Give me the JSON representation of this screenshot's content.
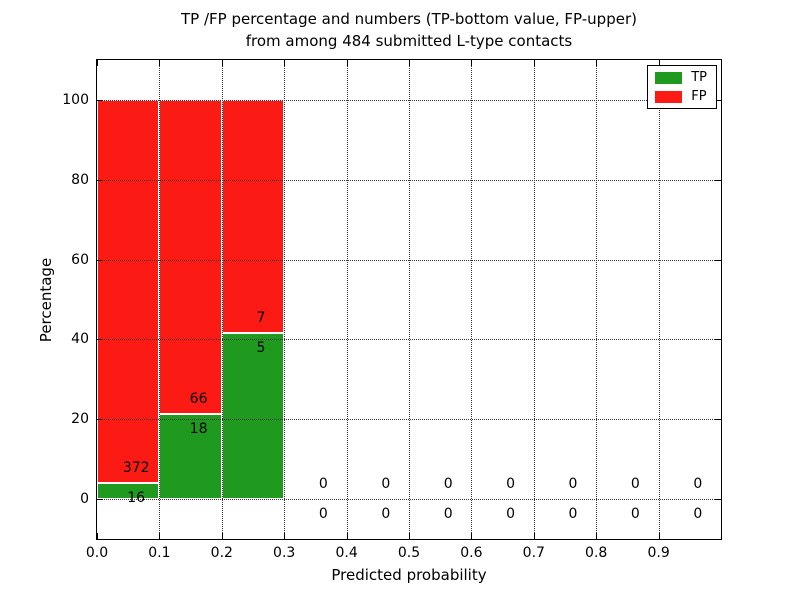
{
  "chart_data": {
    "type": "bar",
    "stacked": true,
    "title": "TP /FP percentage and numbers (TP-bottom value, FP-upper) from among 484 submitted L-type contacts",
    "title_line1": "TP /FP percentage and numbers (TP-bottom value, FP-upper)",
    "title_line2": "from among 484 submitted L-type contacts",
    "xlabel": "Predicted probability",
    "ylabel": "Percentage",
    "xlim": [
      0.0,
      1.0
    ],
    "ylim": [
      -10,
      110
    ],
    "yticks": [
      0,
      20,
      40,
      60,
      80,
      100
    ],
    "xticks": [
      0.0,
      0.1,
      0.2,
      0.3,
      0.4,
      0.5,
      0.6,
      0.7,
      0.8,
      0.9
    ],
    "xtick_labels": [
      "0.0",
      "0.1",
      "0.2",
      "0.3",
      "0.4",
      "0.5",
      "0.6",
      "0.7",
      "0.8",
      "0.9"
    ],
    "grid": true,
    "grid_linestyle": "dotted",
    "legend_position": "upper right",
    "total_contacts": 484,
    "legend": [
      {
        "label": "TP",
        "color": "#1f9a1f"
      },
      {
        "label": "FP",
        "color": "#fc1a15"
      }
    ],
    "colors": {
      "tp": "#1f9a1f",
      "fp": "#fc1a15",
      "axis": "#000000",
      "grid": "#333333",
      "background": "#ffffff"
    },
    "bins": [
      {
        "x_range": [
          0.0,
          0.1
        ],
        "tp_count": 16,
        "fp_count": 372,
        "tp_pct": 4.12,
        "fp_pct": 95.88
      },
      {
        "x_range": [
          0.1,
          0.2
        ],
        "tp_count": 18,
        "fp_count": 66,
        "tp_pct": 21.43,
        "fp_pct": 78.57
      },
      {
        "x_range": [
          0.2,
          0.3
        ],
        "tp_count": 5,
        "fp_count": 7,
        "tp_pct": 41.67,
        "fp_pct": 58.33
      },
      {
        "x_range": [
          0.3,
          0.4
        ],
        "tp_count": 0,
        "fp_count": 0,
        "tp_pct": 0,
        "fp_pct": 0
      },
      {
        "x_range": [
          0.4,
          0.5
        ],
        "tp_count": 0,
        "fp_count": 0,
        "tp_pct": 0,
        "fp_pct": 0
      },
      {
        "x_range": [
          0.5,
          0.6
        ],
        "tp_count": 0,
        "fp_count": 0,
        "tp_pct": 0,
        "fp_pct": 0
      },
      {
        "x_range": [
          0.6,
          0.7
        ],
        "tp_count": 0,
        "fp_count": 0,
        "tp_pct": 0,
        "fp_pct": 0
      },
      {
        "x_range": [
          0.7,
          0.8
        ],
        "tp_count": 0,
        "fp_count": 0,
        "tp_pct": 0,
        "fp_pct": 0
      },
      {
        "x_range": [
          0.8,
          0.9
        ],
        "tp_count": 0,
        "fp_count": 0,
        "tp_pct": 0,
        "fp_pct": 0
      },
      {
        "x_range": [
          0.9,
          1.0
        ],
        "tp_count": 0,
        "fp_count": 0,
        "tp_pct": 0,
        "fp_pct": 0
      }
    ]
  }
}
